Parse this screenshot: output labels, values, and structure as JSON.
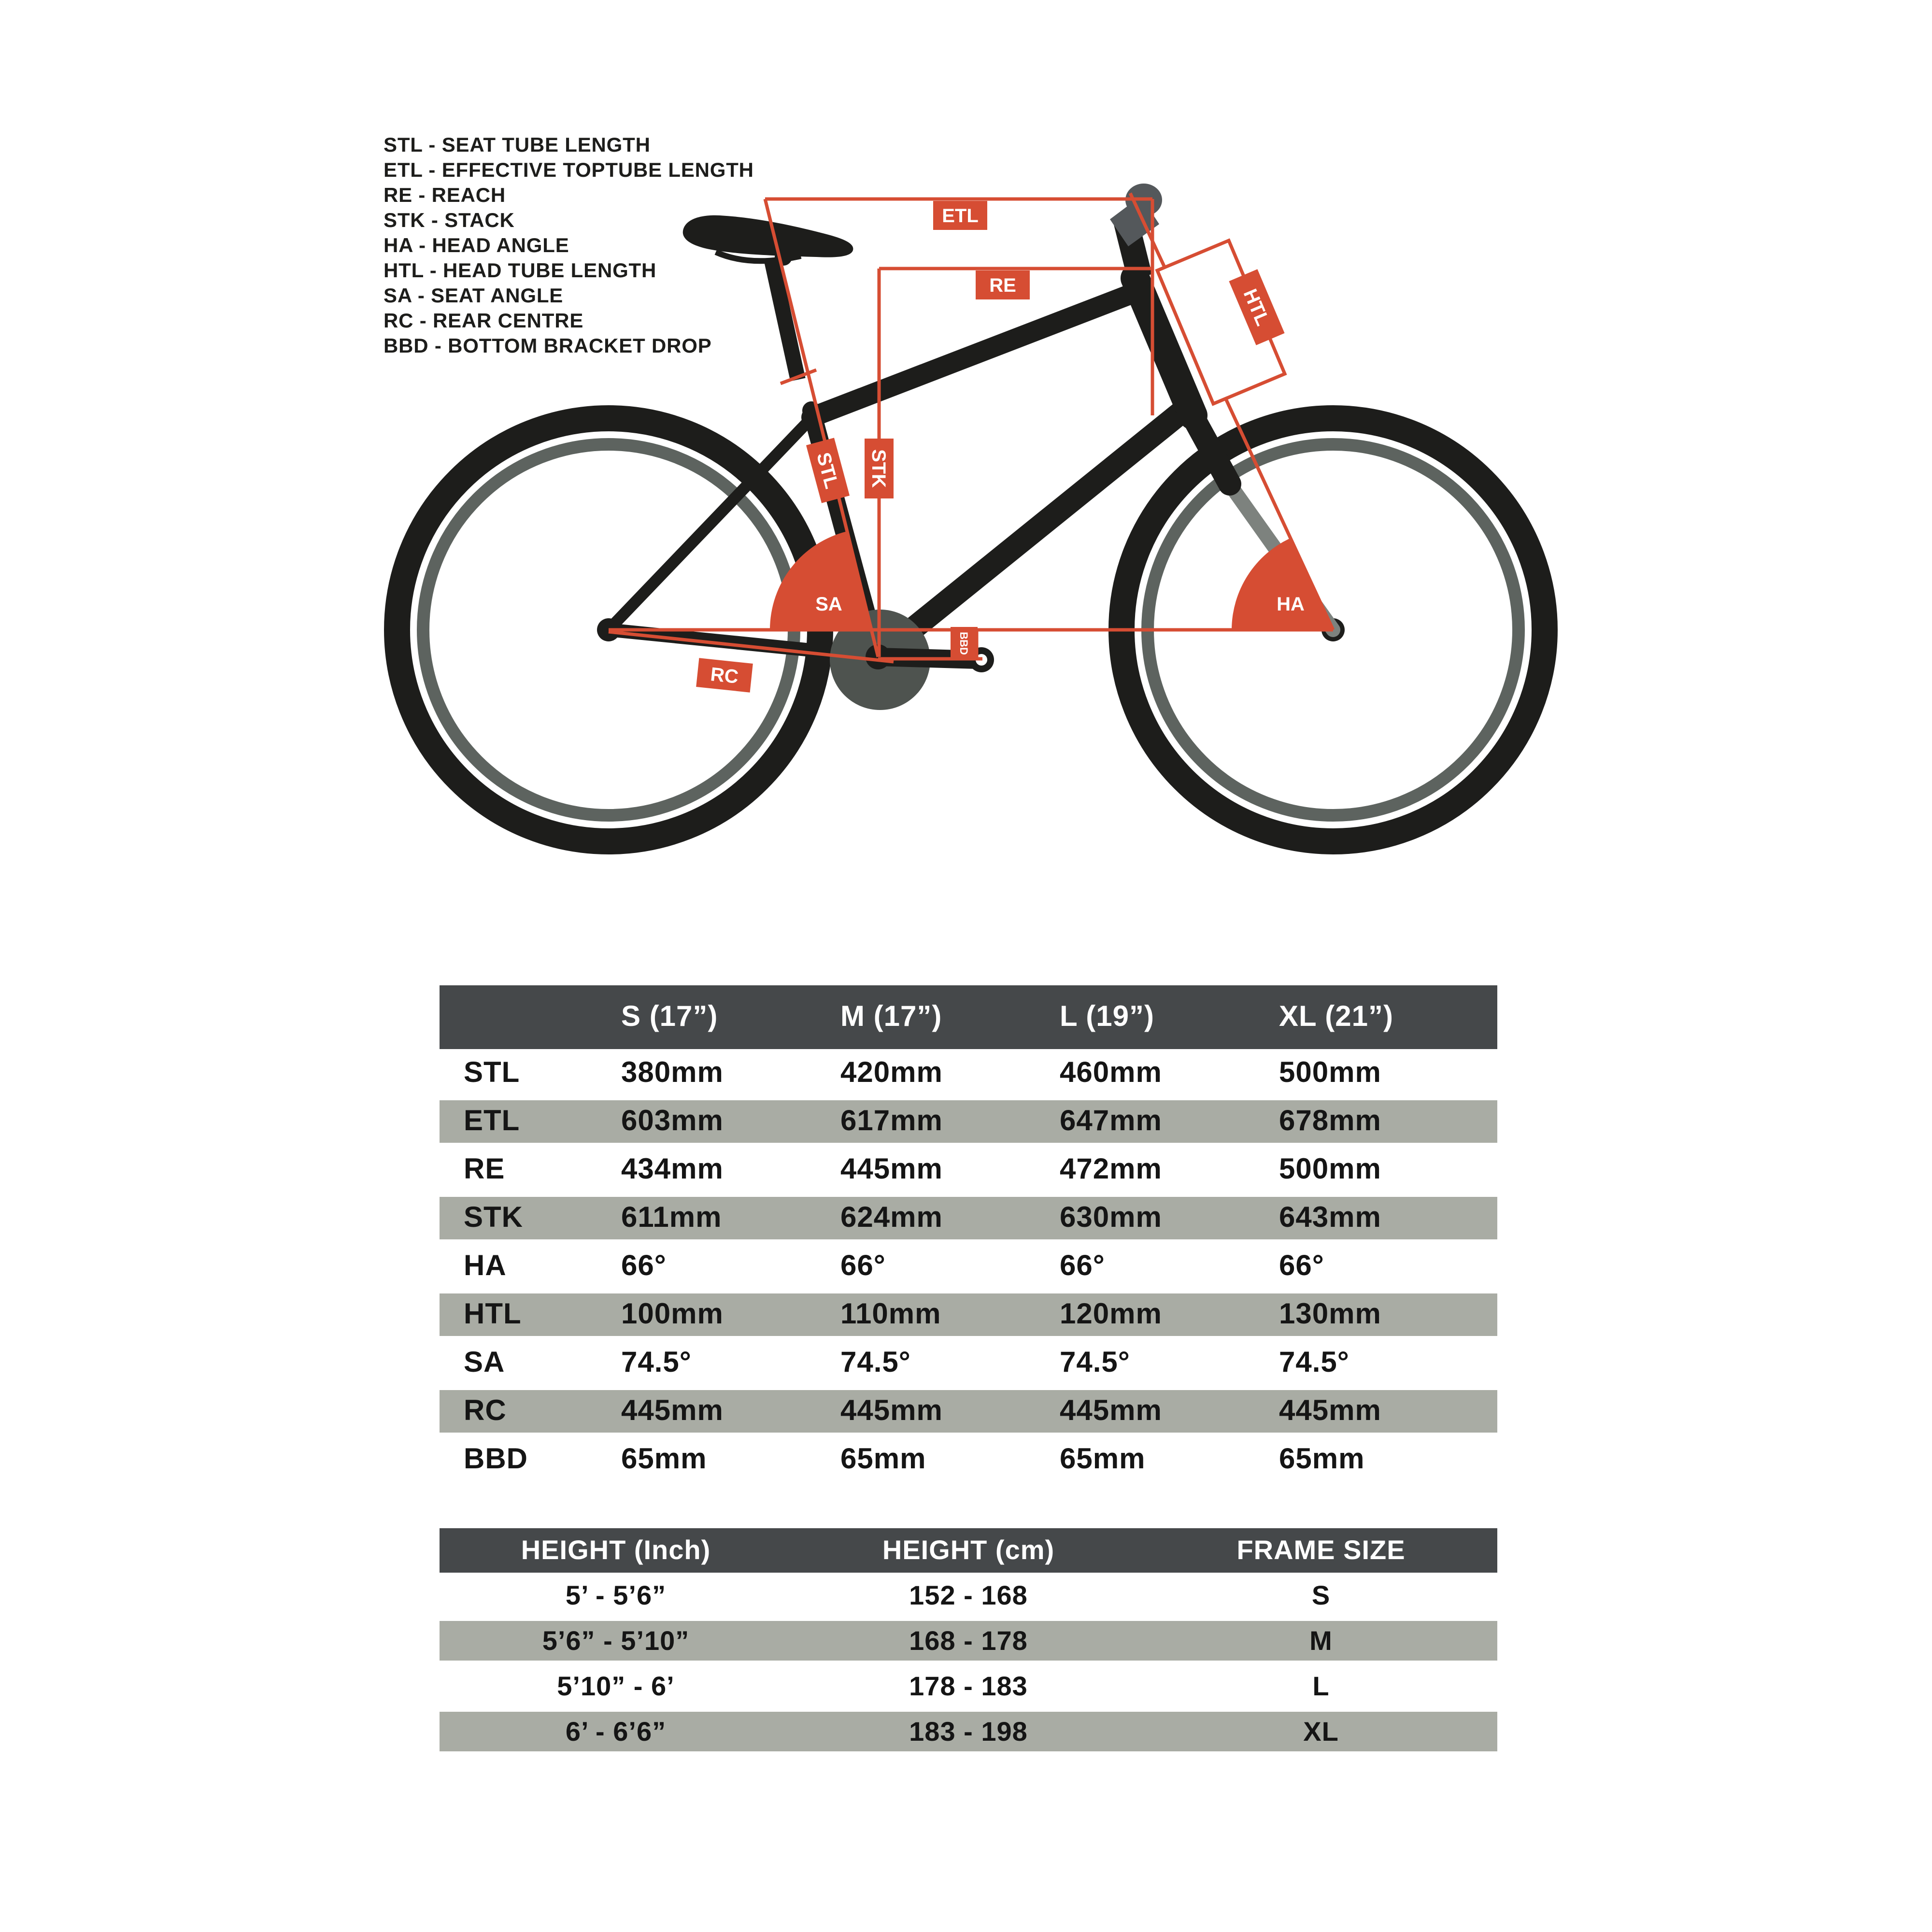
{
  "colors": {
    "accent": "#d64d33",
    "table_header_bg": "#45484a",
    "table_alt_row_bg": "#a9aca4",
    "bike_black": "#1d1d1b",
    "rim_gray": "#5d635f",
    "fork_gray": "#7d827e",
    "crank_gray": "#4e534f",
    "stem_gray": "#54585b"
  },
  "legend": {
    "items": [
      "STL - SEAT TUBE LENGTH",
      "ETL - EFFECTIVE TOPTUBE LENGTH",
      "RE - REACH",
      "STK - STACK",
      "HA - HEAD ANGLE",
      "HTL - HEAD TUBE LENGTH",
      "SA - SEAT ANGLE",
      "RC - REAR CENTRE",
      "BBD - BOTTOM BRACKET DROP"
    ]
  },
  "diagram": {
    "labels": {
      "etl": "ETL",
      "re": "RE",
      "htl": "HTL",
      "stl": "STL",
      "stk": "STK",
      "sa": "SA",
      "ha": "HA",
      "rc": "RC",
      "bbd": "BBD"
    }
  },
  "geometry_table": {
    "columns": [
      "",
      "S (17”)",
      "M (17”)",
      "L (19”)",
      "XL (21”)"
    ],
    "rows": [
      {
        "label": "STL",
        "values": [
          "380mm",
          "420mm",
          "460mm",
          "500mm"
        ]
      },
      {
        "label": "ETL",
        "values": [
          "603mm",
          "617mm",
          "647mm",
          "678mm"
        ]
      },
      {
        "label": "RE",
        "values": [
          "434mm",
          "445mm",
          "472mm",
          "500mm"
        ]
      },
      {
        "label": "STK",
        "values": [
          "611mm",
          "624mm",
          "630mm",
          "643mm"
        ]
      },
      {
        "label": "HA",
        "values": [
          "66°",
          "66°",
          "66°",
          "66°"
        ]
      },
      {
        "label": "HTL",
        "values": [
          "100mm",
          "110mm",
          "120mm",
          "130mm"
        ]
      },
      {
        "label": "SA",
        "values": [
          "74.5°",
          "74.5°",
          "74.5°",
          "74.5°"
        ]
      },
      {
        "label": "RC",
        "values": [
          "445mm",
          "445mm",
          "445mm",
          "445mm"
        ]
      },
      {
        "label": "BBD",
        "values": [
          "65mm",
          "65mm",
          "65mm",
          "65mm"
        ]
      }
    ]
  },
  "size_table": {
    "columns": [
      "HEIGHT (Inch)",
      "HEIGHT (cm)",
      "FRAME SIZE"
    ],
    "rows": [
      [
        "5’ - 5’6”",
        "152 - 168",
        "S"
      ],
      [
        "5’6” - 5’10”",
        "168 - 178",
        "M"
      ],
      [
        "5’10” - 6’",
        "178 - 183",
        "L"
      ],
      [
        "6’ - 6’6”",
        "183 - 198",
        "XL"
      ]
    ]
  }
}
